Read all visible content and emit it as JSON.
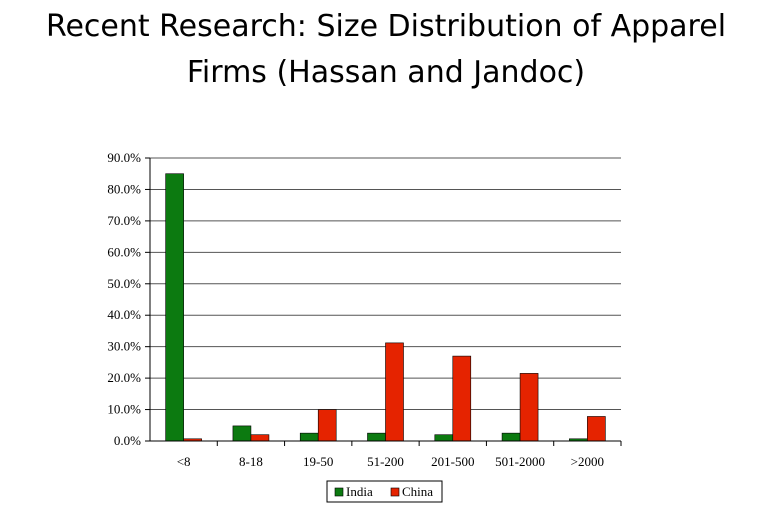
{
  "slide": {
    "title_line1": "Recent Research: Size Distribution of Apparel",
    "title_line2": "Firms (Hassan and Jandoc)"
  },
  "colors": {
    "india": "#0c7a10",
    "china": "#e52300",
    "axis": "#000000",
    "grid": "#555555"
  },
  "chart_data": {
    "type": "bar",
    "categories": [
      "<8",
      "8-18",
      "19-50",
      "51-200",
      "201-500",
      "501-2000",
      ">2000"
    ],
    "series": [
      {
        "name": "India",
        "values": [
          85.0,
          4.8,
          2.5,
          2.5,
          2.0,
          2.5,
          0.7
        ]
      },
      {
        "name": "China",
        "values": [
          0.7,
          2.0,
          10.0,
          31.2,
          27.0,
          21.5,
          7.8
        ]
      }
    ],
    "ylim": [
      0,
      90
    ],
    "y_ticks": [
      "0.0%",
      "10.0%",
      "20.0%",
      "30.0%",
      "40.0%",
      "50.0%",
      "60.0%",
      "70.0%",
      "80.0%",
      "90.0%"
    ],
    "grid": true,
    "legend_position": "bottom-center"
  }
}
